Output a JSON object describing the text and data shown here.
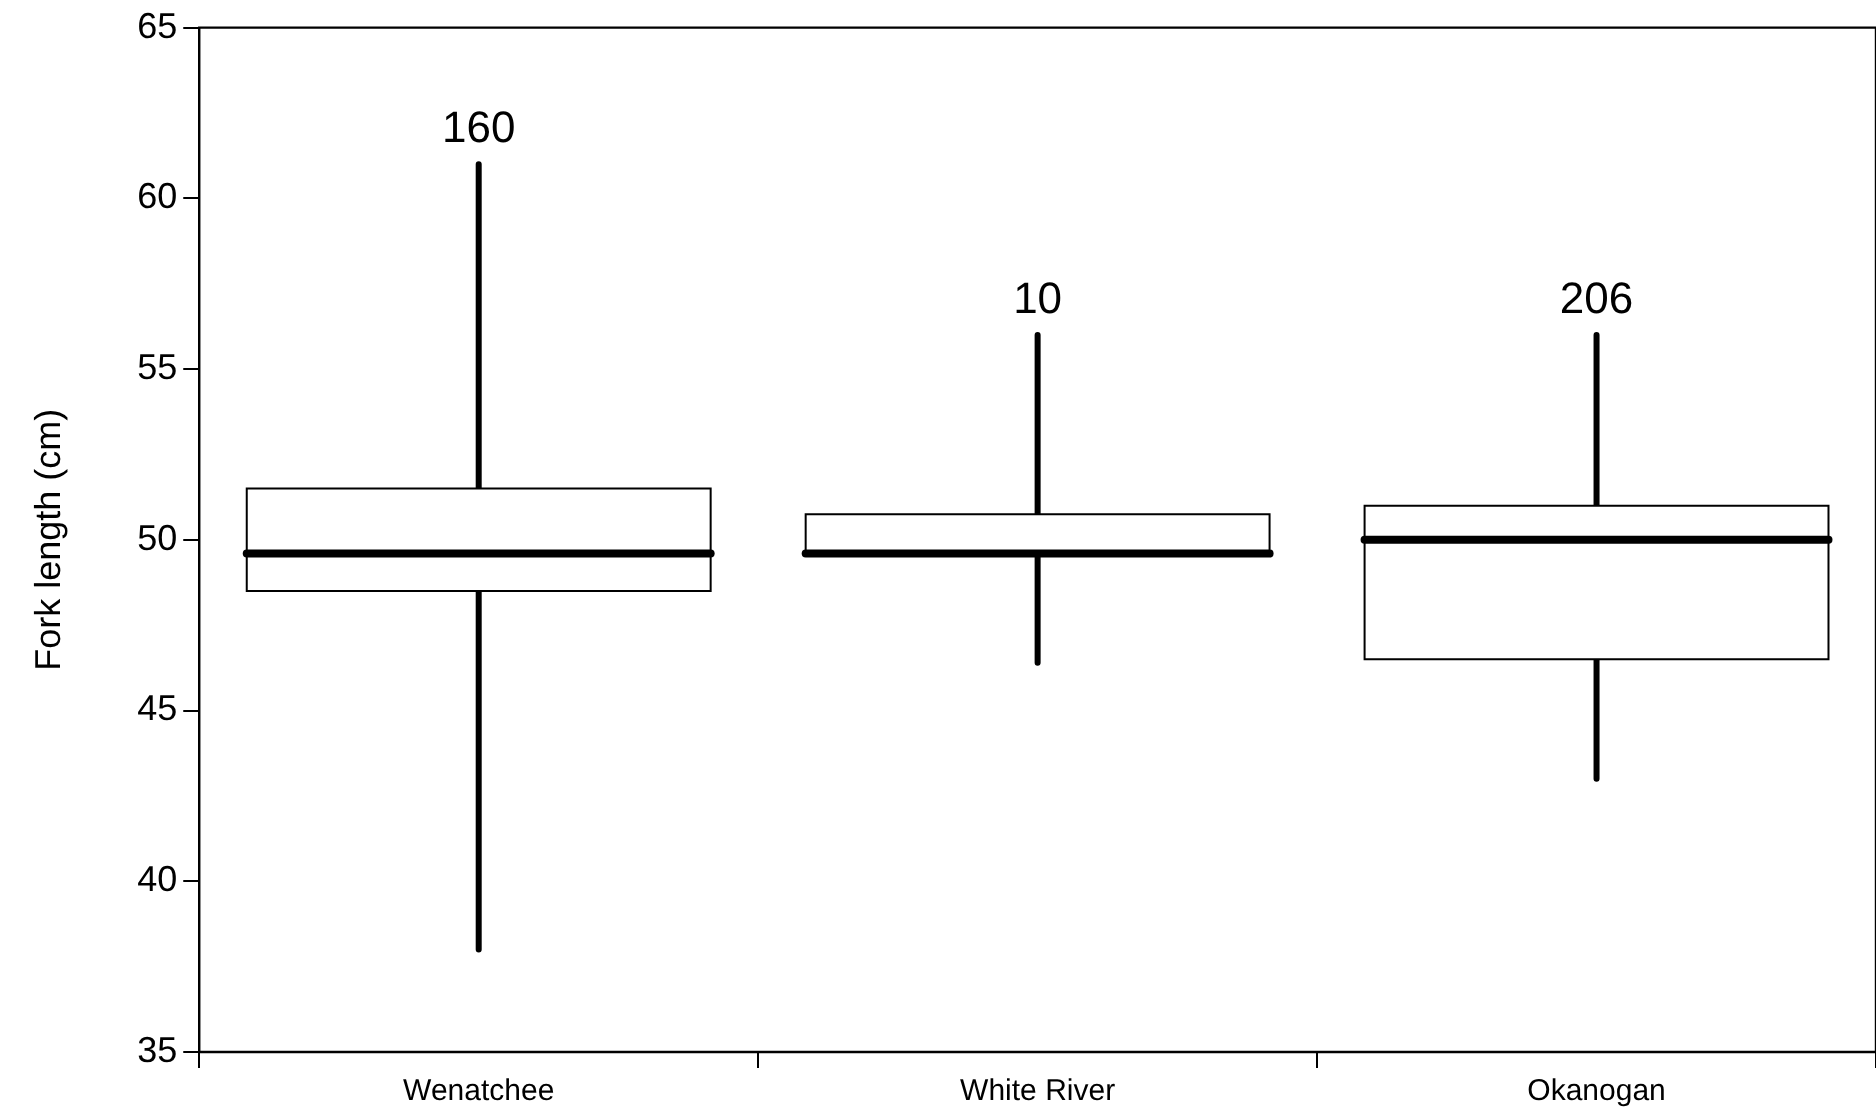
{
  "chart_data": {
    "type": "box",
    "ylabel": "Fork length (cm)",
    "categories": [
      "Wenatchee",
      "White River",
      "Okanogan"
    ],
    "boxes": [
      {
        "low": 38,
        "q1": 48.5,
        "median": 49.6,
        "q3": 51.5,
        "high": 61
      },
      {
        "low": 46.4,
        "q1": 49.6,
        "median": 49.6,
        "q3": 50.75,
        "high": 56
      },
      {
        "low": 43,
        "q1": 46.5,
        "median": 50,
        "q3": 51,
        "high": 56
      }
    ],
    "ylim": [
      35,
      65
    ],
    "yticks": [
      35,
      40,
      45,
      50,
      55,
      60,
      65
    ],
    "grid": false,
    "legend": false,
    "annotations": [
      {
        "text": "160",
        "x": "Wenatchee",
        "y": 61
      },
      {
        "text": "10",
        "x": "White River",
        "y": 56
      },
      {
        "text": "206",
        "x": "Okanogan",
        "y": 56
      }
    ]
  }
}
